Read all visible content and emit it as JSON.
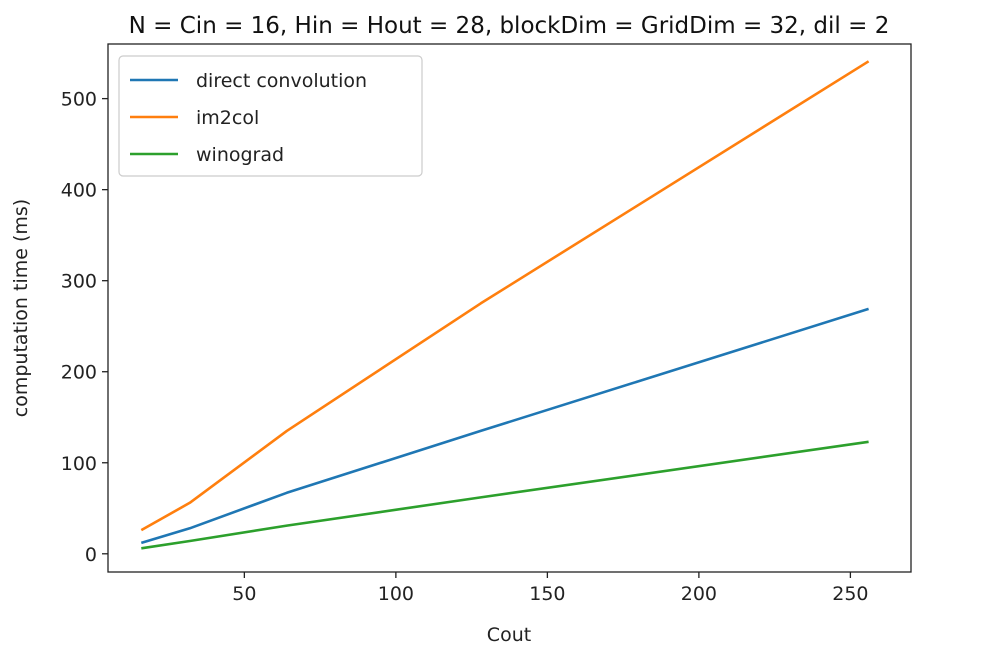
{
  "chart_data": {
    "type": "line",
    "title": "N = Cin = 16, Hin = Hout = 28, blockDim = GridDim = 32, dil = 2",
    "xlabel": "Cout",
    "ylabel": "computation time (ms)",
    "xlim": [
      5,
      270
    ],
    "ylim": [
      -20,
      560
    ],
    "xticks": [
      50,
      100,
      150,
      200,
      250
    ],
    "yticks": [
      0,
      100,
      200,
      300,
      400,
      500
    ],
    "grid": false,
    "legend_position": "top-left",
    "x": [
      16,
      32,
      64,
      128,
      256
    ],
    "series": [
      {
        "name": "direct convolution",
        "color": "#1f77b4",
        "values": [
          12,
          28,
          67,
          135,
          269
        ]
      },
      {
        "name": "im2col",
        "color": "#ff7f0e",
        "values": [
          26,
          56,
          135,
          275,
          541
        ]
      },
      {
        "name": "winograd",
        "color": "#2ca02c",
        "values": [
          6,
          14,
          31,
          62,
          123
        ]
      }
    ]
  }
}
